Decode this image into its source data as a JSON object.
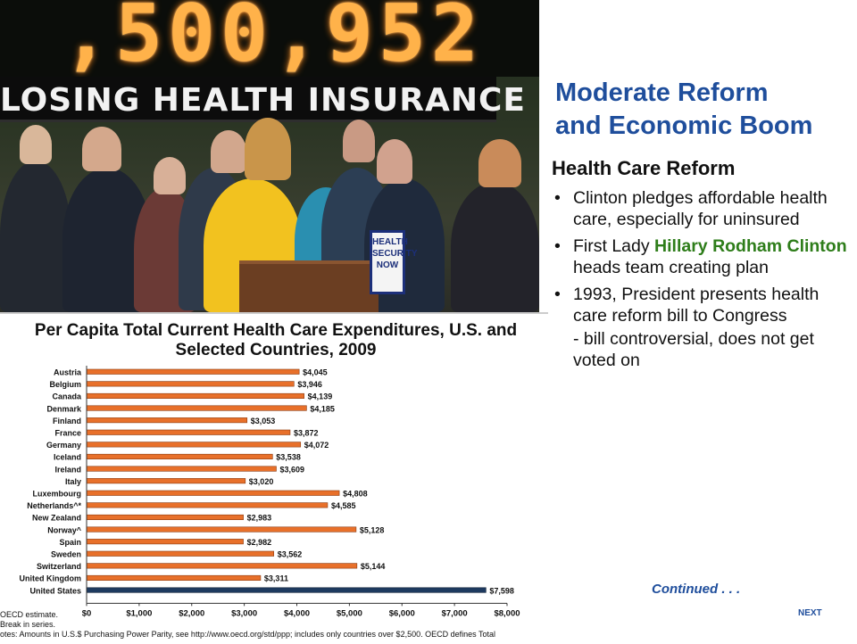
{
  "slide": {
    "title_line1": "Moderate Reform",
    "title_line2": "and Economic Boom",
    "section_heading": "Health Care Reform",
    "bullets": [
      "Clinton pledges affordable health care, especially for uninsured",
      "1993, President presents health care reform bill to Congress"
    ],
    "bullet2": {
      "prefix": "First Lady ",
      "highlight": "Hillary Rodham Clinton",
      "suffix": " heads team creating plan"
    },
    "bullet3_sub": "- bill controversial, does not get voted on",
    "continued": "Continued . . .",
    "next": "NEXT",
    "bullet_glyph": "•"
  },
  "photo": {
    "led_digits": ",500,952",
    "sign_text": "LOSING HEALTH INSURANCE",
    "podium_sign": [
      "HEALTH",
      "SECURITY",
      "NOW"
    ]
  },
  "colors": {
    "title": "#1f4e9c",
    "highlight": "#2e7d1a",
    "bar": "#e8702a",
    "bar_us": "#1e3a5f"
  },
  "chart_data": {
    "type": "bar",
    "orientation": "horizontal",
    "title": "Per Capita Total Current Health Care Expenditures, U.S. and Selected Countries, 2009",
    "categories": [
      "Austria",
      "Belgium",
      "Canada",
      "Denmark",
      "Finland",
      "France",
      "Germany",
      "Iceland",
      "Ireland",
      "Italy",
      "Luxembourg",
      "Netherlands^*",
      "New Zealand",
      "Norway^",
      "Spain",
      "Sweden",
      "Switzerland",
      "United Kingdom",
      "United States"
    ],
    "values": [
      4045,
      3946,
      4139,
      4185,
      3053,
      3872,
      4072,
      3538,
      3609,
      3020,
      4808,
      4585,
      2983,
      5128,
      2982,
      3562,
      5144,
      3311,
      7598
    ],
    "value_labels": [
      "$4,045",
      "$3,946",
      "$4,139",
      "$4,185",
      "$3,053",
      "$3,872",
      "$4,072",
      "$3,538",
      "$3,609",
      "$3,020",
      "$4,808",
      "$4,585",
      "$2,983",
      "$5,128",
      "$2,982",
      "$3,562",
      "$5,144",
      "$3,311",
      "$7,598"
    ],
    "xlim": [
      0,
      8000
    ],
    "xticks": [
      "$0",
      "$1,000",
      "$2,000",
      "$3,000",
      "$4,000",
      "$5,000",
      "$6,000",
      "$7,000",
      "$8,000"
    ],
    "grid": false,
    "notes": [
      "OECD estimate.",
      "Break in series.",
      "otes:  Amounts in U.S.$ Purchasing Power Parity, see http://www.oecd.org/std/ppp; includes only countries over $2,500.  OECD defines Total"
    ]
  }
}
